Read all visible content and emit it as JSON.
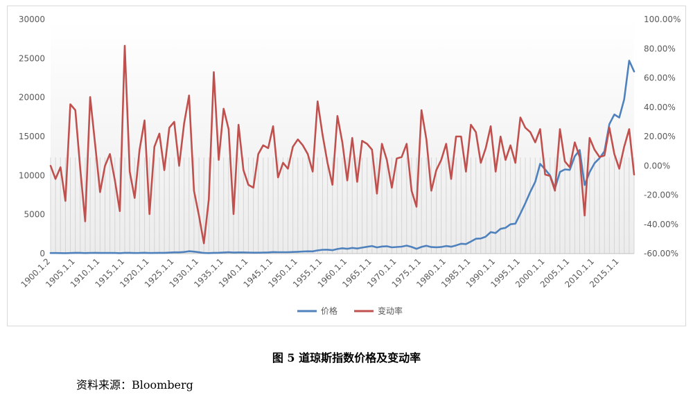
{
  "caption": "图 5  道琼斯指数价格及变动率",
  "source": "资料来源：Bloomberg",
  "chart_data": {
    "type": "line",
    "legend_position": "bottom",
    "grid": false,
    "y_left": {
      "ticks": [
        "0",
        "5000",
        "10000",
        "15000",
        "20000",
        "25000",
        "30000"
      ],
      "range": [
        0,
        30000
      ]
    },
    "y_right": {
      "ticks": [
        "-60.00%",
        "-40.00%",
        "-20.00%",
        "0.00%",
        "20.00%",
        "40.00%",
        "60.00%",
        "80.00%",
        "100.00%"
      ],
      "range": [
        -60,
        100
      ]
    },
    "x_tick_labels": [
      "1900.1.2",
      "1905.1.1",
      "1910.1.1",
      "1915.1.1",
      "1920.1.1",
      "1925.1.1",
      "1930.1.1",
      "1935.1.1",
      "1940.1.1",
      "1945.1.1",
      "1950.1.1",
      "1955.1.1",
      "1960.1.1",
      "1965.1.1",
      "1970.1.1",
      "1975.1.1",
      "1980.1.1",
      "1985.1.1",
      "1990.1.1",
      "1995.1.1",
      "2000.1.1",
      "2005.1.1",
      "2010.1.1",
      "2015.1.1"
    ],
    "years": [
      1900,
      1901,
      1902,
      1903,
      1904,
      1905,
      1906,
      1907,
      1908,
      1909,
      1910,
      1911,
      1912,
      1913,
      1914,
      1915,
      1916,
      1917,
      1918,
      1919,
      1920,
      1921,
      1922,
      1923,
      1924,
      1925,
      1926,
      1927,
      1928,
      1929,
      1930,
      1931,
      1932,
      1933,
      1934,
      1935,
      1936,
      1937,
      1938,
      1939,
      1940,
      1941,
      1942,
      1943,
      1944,
      1945,
      1946,
      1947,
      1948,
      1949,
      1950,
      1951,
      1952,
      1953,
      1954,
      1955,
      1956,
      1957,
      1958,
      1959,
      1960,
      1961,
      1962,
      1963,
      1964,
      1965,
      1966,
      1967,
      1968,
      1969,
      1970,
      1971,
      1972,
      1973,
      1974,
      1975,
      1976,
      1977,
      1978,
      1979,
      1980,
      1981,
      1982,
      1983,
      1984,
      1985,
      1986,
      1987,
      1988,
      1989,
      1990,
      1991,
      1992,
      1993,
      1994,
      1995,
      1996,
      1997,
      1998,
      1999,
      2000,
      2001,
      2002,
      2003,
      2004,
      2005,
      2006,
      2007,
      2008,
      2009,
      2010,
      2011,
      2012,
      2013,
      2014,
      2015,
      2016,
      2017,
      2018
    ],
    "series": [
      {
        "name": "价格",
        "axis": "left",
        "color": "#4f81bd",
        "values": [
          68,
          71,
          64,
          49,
          69,
          96,
          94,
          59,
          86,
          99,
          81,
          81,
          88,
          79,
          54,
          99,
          95,
          74,
          82,
          107,
          72,
          81,
          99,
          96,
          121,
          156,
          157,
          202,
          300,
          248,
          165,
          78,
          60,
          99,
          104,
          144,
          180,
          121,
          155,
          150,
          131,
          111,
          119,
          136,
          152,
          193,
          177,
          181,
          177,
          200,
          235,
          269,
          292,
          281,
          404,
          488,
          500,
          436,
          584,
          679,
          616,
          731,
          652,
          763,
          874,
          969,
          786,
          905,
          944,
          800,
          839,
          890,
          1020,
          851,
          616,
          852,
          1005,
          831,
          805,
          839,
          964,
          875,
          1047,
          1259,
          1212,
          1547,
          1896,
          1939,
          2169,
          2753,
          2634,
          3169,
          3301,
          3754,
          3834,
          5117,
          6448,
          7908,
          9181,
          11497,
          10788,
          10022,
          8342,
          10454,
          10783,
          10718,
          12463,
          13265,
          8776,
          10428,
          11578,
          12218,
          13104,
          16577,
          17823,
          17425,
          19763,
          24719,
          23327
        ]
      },
      {
        "name": "变动率",
        "axis": "right",
        "color": "#c0504d",
        "values": [
          0,
          -9,
          -1,
          -24,
          42,
          38,
          -2,
          -38,
          47,
          15,
          -18,
          0,
          8,
          -10,
          -31,
          82,
          -4,
          -22,
          11,
          31,
          -33,
          13,
          22,
          -3,
          26,
          30,
          0,
          29,
          48,
          -17,
          -34,
          -53,
          -23,
          64,
          4,
          39,
          25,
          -33,
          28,
          -3,
          -13,
          -15,
          8,
          14,
          12,
          27,
          -8,
          2,
          -2,
          13,
          18,
          14,
          8,
          -4,
          44,
          21,
          2,
          -13,
          34,
          16,
          -10,
          19,
          -11,
          17,
          15,
          11,
          -19,
          15,
          4,
          -15,
          5,
          6,
          15,
          -17,
          -28,
          38,
          18,
          -17,
          -3,
          4,
          15,
          -9,
          20,
          20,
          -4,
          28,
          23,
          2,
          12,
          27,
          -4,
          20,
          4,
          14,
          2,
          33,
          26,
          23,
          16,
          25,
          -6,
          -7,
          -17,
          25,
          3,
          -1,
          16,
          6,
          -34,
          19,
          11,
          6,
          7,
          26,
          8,
          -2,
          13,
          25,
          -6
        ]
      }
    ]
  }
}
